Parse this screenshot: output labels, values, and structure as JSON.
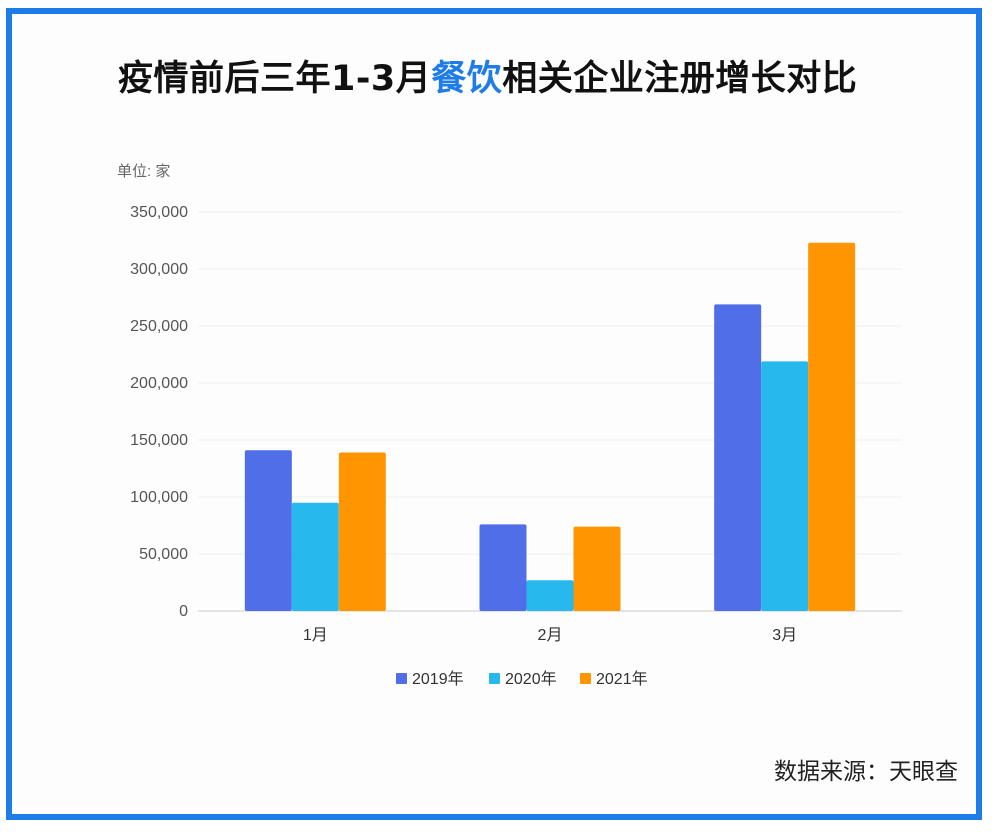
{
  "title": {
    "part1": "疫情前后三年1-3月",
    "highlight": "餐饮",
    "part2": "相关企业注册增长对比"
  },
  "unit_label": "单位: 家",
  "source": "数据来源：天眼查",
  "colors": {
    "border": "#1e7ce8",
    "highlight": "#1e7ce8"
  },
  "chart_data": {
    "type": "bar",
    "categories": [
      "1月",
      "2月",
      "3月"
    ],
    "series": [
      {
        "name": "2019年",
        "color": "#4f6ee8",
        "values": [
          141000,
          76000,
          269000
        ]
      },
      {
        "name": "2020年",
        "color": "#27b8ee",
        "values": [
          95000,
          27000,
          219000
        ]
      },
      {
        "name": "2021年",
        "color": "#ff9500",
        "values": [
          139000,
          74000,
          323000
        ]
      }
    ],
    "ylim": [
      0,
      350000
    ],
    "yticks": [
      0,
      50000,
      100000,
      150000,
      200000,
      250000,
      300000,
      350000
    ],
    "ytick_labels": [
      "0",
      "50,000",
      "100,000",
      "150,000",
      "200,000",
      "250,000",
      "300,000",
      "350,000"
    ],
    "grid": true,
    "legend": "bottom-center"
  }
}
